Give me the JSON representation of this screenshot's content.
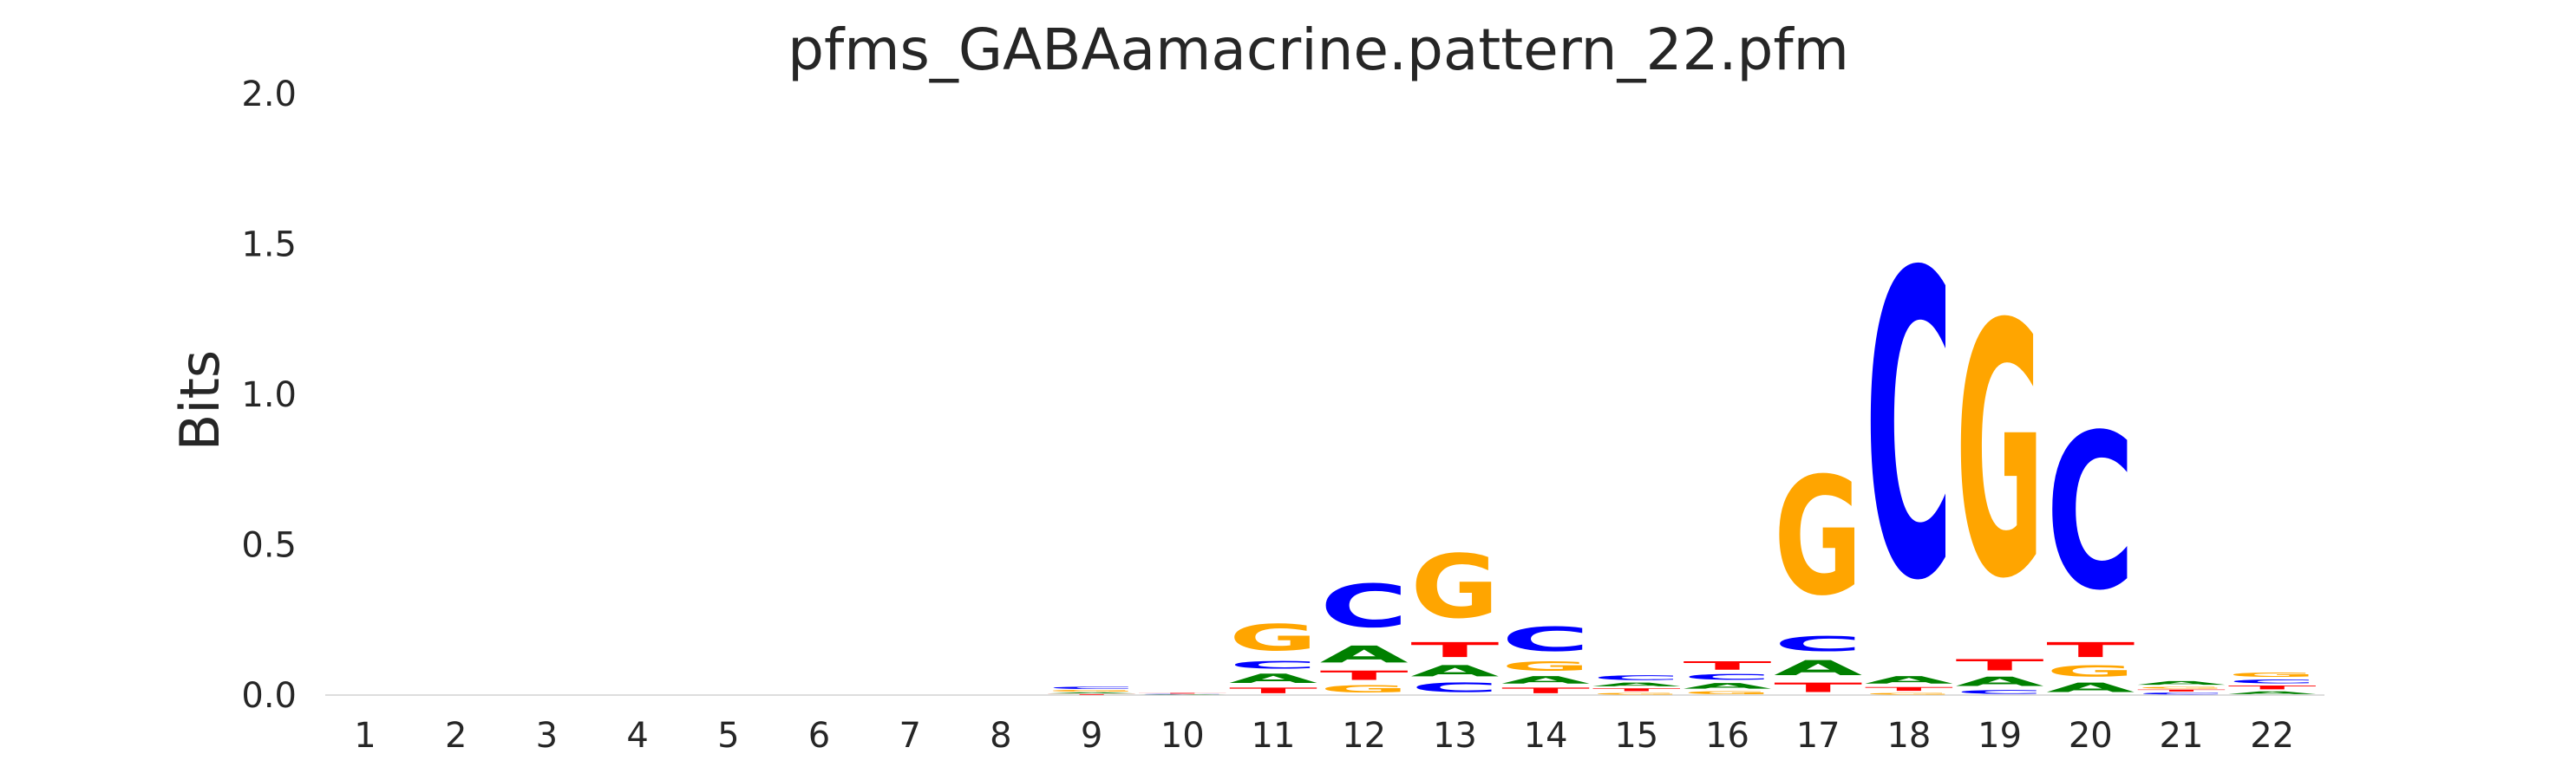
{
  "chart_data": {
    "type": "sequence-logo",
    "title": "pfms_GABAamacrine.pattern_22.pfm",
    "ylabel": "Bits",
    "xlabel": "",
    "ylim": [
      0,
      2.0
    ],
    "yticks": [
      "0.0",
      "0.5",
      "1.0",
      "1.5",
      "2.0"
    ],
    "grid": false,
    "letter_colors": {
      "A": "#008000",
      "C": "#0000ff",
      "G": "#ffa500",
      "T": "#ff0000"
    },
    "positions": [
      {
        "label": "1",
        "stack": []
      },
      {
        "label": "2",
        "stack": []
      },
      {
        "label": "3",
        "stack": []
      },
      {
        "label": "4",
        "stack": []
      },
      {
        "label": "5",
        "stack": []
      },
      {
        "label": "6",
        "stack": []
      },
      {
        "label": "7",
        "stack": []
      },
      {
        "label": "8",
        "stack": []
      },
      {
        "label": "9",
        "stack": [
          {
            "base": "T",
            "h": 0.004
          },
          {
            "base": "A",
            "h": 0.006
          },
          {
            "base": "G",
            "h": 0.008
          },
          {
            "base": "C",
            "h": 0.012
          }
        ]
      },
      {
        "label": "10",
        "stack": [
          {
            "base": "A",
            "h": 0.002
          },
          {
            "base": "C",
            "h": 0.002
          },
          {
            "base": "T",
            "h": 0.004
          }
        ]
      },
      {
        "label": "11",
        "stack": [
          {
            "base": "T",
            "h": 0.03
          },
          {
            "base": "A",
            "h": 0.05
          },
          {
            "base": "C",
            "h": 0.04
          },
          {
            "base": "G",
            "h": 0.14
          }
        ]
      },
      {
        "label": "12",
        "stack": [
          {
            "base": "G",
            "h": 0.04
          },
          {
            "base": "T",
            "h": 0.05
          },
          {
            "base": "A",
            "h": 0.09
          },
          {
            "base": "C",
            "h": 0.23
          }
        ]
      },
      {
        "label": "13",
        "stack": [
          {
            "base": "C",
            "h": 0.05
          },
          {
            "base": "A",
            "h": 0.06
          },
          {
            "base": "T",
            "h": 0.08
          },
          {
            "base": "G",
            "h": 0.34
          }
        ]
      },
      {
        "label": "14",
        "stack": [
          {
            "base": "T",
            "h": 0.03
          },
          {
            "base": "A",
            "h": 0.04
          },
          {
            "base": "G",
            "h": 0.05
          },
          {
            "base": "C",
            "h": 0.13
          }
        ]
      },
      {
        "label": "15",
        "stack": [
          {
            "base": "G",
            "h": 0.01
          },
          {
            "base": "T",
            "h": 0.015
          },
          {
            "base": "A",
            "h": 0.02
          },
          {
            "base": "C",
            "h": 0.025
          }
        ]
      },
      {
        "label": "16",
        "stack": [
          {
            "base": "G",
            "h": 0.015
          },
          {
            "base": "A",
            "h": 0.03
          },
          {
            "base": "C",
            "h": 0.03
          },
          {
            "base": "T",
            "h": 0.045
          }
        ]
      },
      {
        "label": "17",
        "stack": [
          {
            "base": "T",
            "h": 0.05
          },
          {
            "base": "A",
            "h": 0.08
          },
          {
            "base": "C",
            "h": 0.08
          },
          {
            "base": "G",
            "h": 0.63
          }
        ]
      },
      {
        "label": "18",
        "stack": [
          {
            "base": "G",
            "h": 0.01
          },
          {
            "base": "T",
            "h": 0.02
          },
          {
            "base": "A",
            "h": 0.04
          },
          {
            "base": "C",
            "h": 1.63
          }
        ]
      },
      {
        "label": "19",
        "stack": [
          {
            "base": "C",
            "h": 0.02
          },
          {
            "base": "A",
            "h": 0.05
          },
          {
            "base": "T",
            "h": 0.06
          },
          {
            "base": "G",
            "h": 1.35
          }
        ]
      },
      {
        "label": "20",
        "stack": [
          {
            "base": "A",
            "h": 0.05
          },
          {
            "base": "G",
            "h": 0.06
          },
          {
            "base": "T",
            "h": 0.08
          },
          {
            "base": "C",
            "h": 0.83
          }
        ]
      },
      {
        "label": "21",
        "stack": [
          {
            "base": "C",
            "h": 0.01
          },
          {
            "base": "T",
            "h": 0.01
          },
          {
            "base": "G",
            "h": 0.01
          },
          {
            "base": "A",
            "h": 0.02
          }
        ]
      },
      {
        "label": "22",
        "stack": [
          {
            "base": "A",
            "h": 0.015
          },
          {
            "base": "T",
            "h": 0.02
          },
          {
            "base": "C",
            "h": 0.02
          },
          {
            "base": "G",
            "h": 0.025
          }
        ]
      }
    ]
  }
}
